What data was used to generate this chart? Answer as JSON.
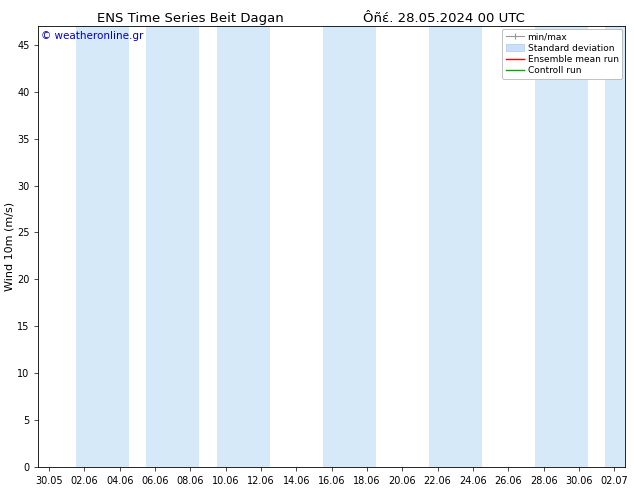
{
  "title_left": "ENS Time Series Beit Dagan",
  "title_right": "Ôñέ. 28.05.2024 00 UTC",
  "ylabel": "Wind 10m (m/s)",
  "watermark": "© weatheronline.gr",
  "watermark_color": "#0000cc",
  "ylim": [
    0,
    47
  ],
  "yticks": [
    0,
    5,
    10,
    15,
    20,
    25,
    30,
    35,
    40,
    45
  ],
  "xtick_labels": [
    "30.05",
    "02.06",
    "04.06",
    "06.06",
    "08.06",
    "10.06",
    "12.06",
    "14.06",
    "16.06",
    "18.06",
    "20.06",
    "22.06",
    "24.06",
    "26.06",
    "28.06",
    "30.06",
    "02.07"
  ],
  "bg_color": "#ffffff",
  "plot_bg_color": "#ffffff",
  "band_color": "#d6e9f8",
  "legend_labels": [
    "min/max",
    "Standard deviation",
    "Ensemble mean run",
    "Controll run"
  ],
  "legend_colors": [
    "#a0a0a0",
    "#cce0f5",
    "#ff0000",
    "#00aa00"
  ],
  "title_fontsize": 9.5,
  "tick_fontsize": 7,
  "ylabel_fontsize": 8,
  "watermark_fontsize": 7.5
}
